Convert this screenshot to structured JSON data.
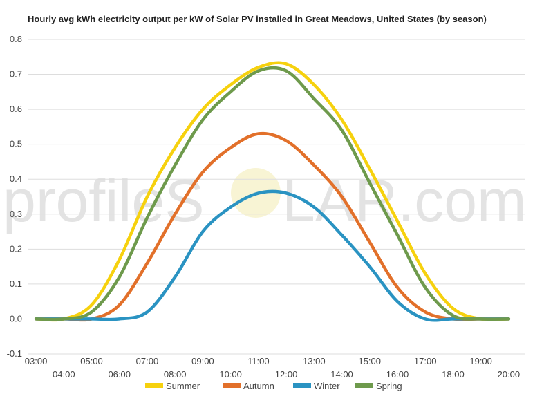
{
  "chart_data": {
    "type": "line",
    "title": "Hourly avg kWh electricity output per kW of Solar PV installed in Great Meadows, United States (by season)",
    "watermark": {
      "left": "profileS",
      "right": "LAR.com"
    },
    "xlabel": "",
    "ylabel": "",
    "ylim": [
      -0.1,
      0.8
    ],
    "yticks": [
      "-0.1",
      "0.0",
      "0.1",
      "0.2",
      "0.3",
      "0.4",
      "0.5",
      "0.6",
      "0.7",
      "0.8"
    ],
    "x": [
      3,
      4,
      5,
      6,
      7,
      8,
      9,
      10,
      11,
      12,
      13,
      14,
      15,
      16,
      17,
      18,
      19,
      20
    ],
    "xticks": [
      "03:00",
      "04:00",
      "05:00",
      "06:00",
      "07:00",
      "08:00",
      "09:00",
      "10:00",
      "11:00",
      "12:00",
      "13:00",
      "14:00",
      "15:00",
      "16:00",
      "17:00",
      "18:00",
      "19:00",
      "20:00"
    ],
    "grid": true,
    "legend_position": "bottom",
    "series": [
      {
        "name": "Summer",
        "color": "#f6d10e",
        "values": [
          0.0,
          0.0,
          0.04,
          0.17,
          0.35,
          0.49,
          0.6,
          0.67,
          0.72,
          0.73,
          0.67,
          0.57,
          0.43,
          0.28,
          0.13,
          0.03,
          0.0,
          0.0
        ]
      },
      {
        "name": "Autumn",
        "color": "#e2702a",
        "values": [
          0.0,
          0.0,
          0.0,
          0.04,
          0.16,
          0.3,
          0.42,
          0.49,
          0.53,
          0.51,
          0.44,
          0.35,
          0.22,
          0.09,
          0.02,
          0.0,
          0.0,
          0.0
        ]
      },
      {
        "name": "Winter",
        "color": "#2a93c2",
        "values": [
          0.0,
          0.0,
          0.0,
          0.0,
          0.02,
          0.12,
          0.25,
          0.32,
          0.36,
          0.36,
          0.32,
          0.24,
          0.15,
          0.05,
          0.0,
          0.0,
          0.0,
          0.0
        ]
      },
      {
        "name": "Spring",
        "color": "#6e9a4c",
        "values": [
          0.0,
          0.0,
          0.02,
          0.12,
          0.29,
          0.44,
          0.57,
          0.65,
          0.71,
          0.71,
          0.63,
          0.54,
          0.39,
          0.24,
          0.09,
          0.01,
          0.0,
          0.0
        ]
      }
    ]
  }
}
